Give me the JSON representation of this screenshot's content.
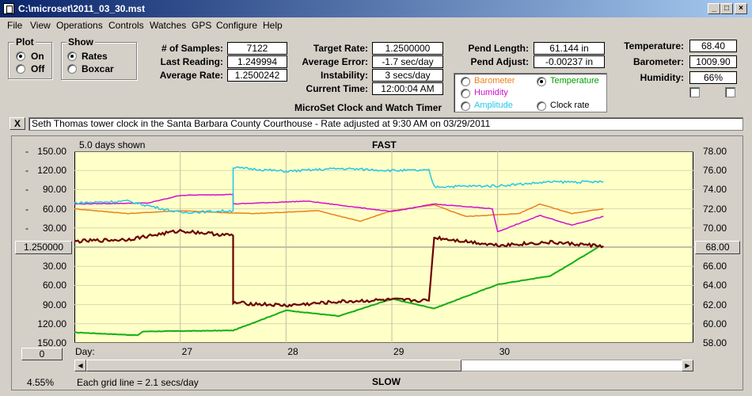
{
  "window": {
    "title": "C:\\microset\\2011_03_30.mst"
  },
  "menu": [
    "File",
    "View",
    "Operations",
    "Controls",
    "Watches",
    "GPS",
    "Configure",
    "Help"
  ],
  "plot": {
    "title": "Plot",
    "options": [
      "On",
      "Off"
    ],
    "selected": "On"
  },
  "show": {
    "title": "Show",
    "options": [
      "Rates",
      "Boxcar"
    ],
    "selected": "Rates"
  },
  "stats": {
    "samples_label": "# of Samples:",
    "samples": "7122",
    "last_reading_label": "Last Reading:",
    "last_reading": "1.249994",
    "avg_rate_label": "Average Rate:",
    "avg_rate": "1.2500242"
  },
  "targets": {
    "target_rate_label": "Target Rate:",
    "target_rate": "1.2500000",
    "avg_error_label": "Average Error:",
    "avg_error": "-1.7 sec/day",
    "instability_label": "Instability:",
    "instability": "3 secs/day",
    "current_time_label": "Current Time:",
    "current_time": "12:00:04 AM"
  },
  "pendulum": {
    "length_label": "Pend Length:",
    "length": "61.144 in",
    "adjust_label": "Pend Adjust:",
    "adjust": "-0.00237 in"
  },
  "environment": {
    "temperature_label": "Temperature:",
    "temperature": "68.40",
    "barometer_label": "Barometer:",
    "barometer": "1009.90",
    "humidity_label": "Humidity:",
    "humidity": "66%"
  },
  "sensor_select": {
    "options": [
      {
        "label": "Barometer",
        "color": "#e8821c"
      },
      {
        "label": "Temperature",
        "color": "#00a000"
      },
      {
        "label": "Humidity",
        "color": "#d010d0"
      },
      {
        "label": "Amplitude",
        "color": "#20c8e8"
      },
      {
        "label": "Clock rate",
        "color": "#000000"
      }
    ],
    "selected": "Temperature"
  },
  "app_name": "MicroSet Clock and Watch Timer",
  "clear_button": "X",
  "description": "Seth Thomas tower clock in the Santa Barbara County Courthouse - Rate adjusted at 9:30 AM on 03/29/2011",
  "chart_labels": {
    "days_shown": "5.0 days shown",
    "fast": "FAST",
    "slow": "SLOW",
    "day_label": "Day:",
    "center_left": "1.250000",
    "center_right": "68.00",
    "left_button": "0",
    "percent": "4.55%",
    "grid_note": "Each grid line = 2.1 secs/day"
  },
  "chart_data": {
    "type": "line",
    "x": {
      "label": "Day:",
      "ticks": [
        "27",
        "28",
        "29",
        "30"
      ]
    },
    "y_left": {
      "ticks": [
        "150.00",
        "120.00",
        "90.00",
        "60.00",
        "30.00",
        "1.250000",
        "30.00",
        "60.00",
        "90.00",
        "120.00",
        "150.00"
      ],
      "prefix": [
        "-",
        "-",
        "-",
        "-",
        "-",
        "",
        "",
        "",
        "",
        "",
        ""
      ]
    },
    "y_right": {
      "ticks": [
        "78.00",
        "76.00",
        "74.00",
        "72.00",
        "70.00",
        "68.00",
        "66.00",
        "64.00",
        "62.00",
        "60.00",
        "58.00"
      ],
      "range": [
        58,
        78
      ]
    },
    "series": [
      {
        "name": "Temperature",
        "color": "#10b010",
        "points": [
          [
            26.0,
            59.1
          ],
          [
            26.6,
            58.8
          ],
          [
            26.65,
            59.2
          ],
          [
            27.5,
            59.3
          ],
          [
            28.0,
            61.4
          ],
          [
            28.5,
            60.8
          ],
          [
            29.0,
            62.6
          ],
          [
            29.4,
            61.6
          ],
          [
            30.0,
            64.1
          ],
          [
            30.5,
            65.0
          ],
          [
            30.95,
            68.0
          ]
        ]
      },
      {
        "name": "Barometer",
        "color": "#e8821c",
        "points": [
          [
            26.0,
            72.0
          ],
          [
            26.5,
            71.5
          ],
          [
            27.0,
            71.8
          ],
          [
            27.4,
            71.6
          ],
          [
            27.7,
            71.5
          ],
          [
            28.3,
            71.8
          ],
          [
            28.7,
            70.7
          ],
          [
            29.0,
            71.8
          ],
          [
            29.4,
            72.4
          ],
          [
            29.7,
            71.2
          ],
          [
            30.2,
            71.5
          ],
          [
            30.4,
            72.5
          ],
          [
            30.7,
            71.5
          ],
          [
            31.0,
            72.0
          ]
        ]
      },
      {
        "name": "Humidity",
        "color": "#d010d0",
        "points": [
          [
            26.0,
            72.5
          ],
          [
            26.7,
            72.6
          ],
          [
            27.0,
            73.4
          ],
          [
            27.5,
            73.5
          ],
          [
            27.5,
            72.5
          ],
          [
            28.2,
            72.8
          ],
          [
            29.0,
            71.7
          ],
          [
            29.4,
            72.5
          ],
          [
            29.95,
            72.0
          ],
          [
            30.0,
            69.6
          ],
          [
            30.4,
            71.3
          ],
          [
            30.7,
            70.3
          ],
          [
            31.0,
            71.2
          ]
        ]
      },
      {
        "name": "Amplitude",
        "color": "#20c8e8",
        "points": [
          [
            26.0,
            72.6
          ],
          [
            26.5,
            72.8
          ],
          [
            27.0,
            71.6
          ],
          [
            27.5,
            71.8
          ],
          [
            27.5,
            76.3
          ],
          [
            28.0,
            75.9
          ],
          [
            28.5,
            76.2
          ],
          [
            29.0,
            76.0
          ],
          [
            29.35,
            76.0
          ],
          [
            29.4,
            74.3
          ],
          [
            30.0,
            74.4
          ],
          [
            30.5,
            74.8
          ],
          [
            31.0,
            74.8
          ]
        ]
      },
      {
        "name": "Clock rate",
        "color": "#6b0000",
        "points": [
          [
            26.0,
            68.6
          ],
          [
            26.5,
            68.8
          ],
          [
            27.0,
            69.7
          ],
          [
            27.5,
            69.2
          ],
          [
            27.5,
            62.2
          ],
          [
            28.0,
            61.9
          ],
          [
            28.5,
            62.3
          ],
          [
            29.0,
            62.5
          ],
          [
            29.35,
            62.4
          ],
          [
            29.4,
            69.0
          ],
          [
            30.0,
            68.2
          ],
          [
            30.5,
            68.5
          ],
          [
            31.0,
            68.1
          ]
        ]
      }
    ],
    "grid": true
  }
}
